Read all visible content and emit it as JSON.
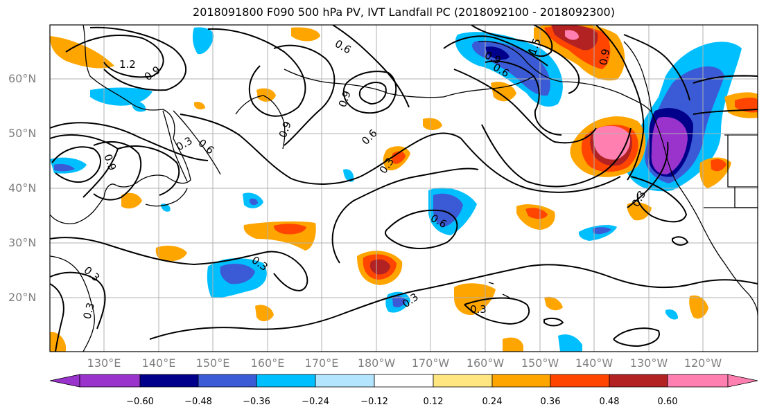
{
  "title": "2018091800 F090 500 hPa PV, IVT Landfall PC (2018092100 - 2018092300)",
  "lat_labels": [
    "60°N",
    "50°N",
    "40°N",
    "30°N",
    "20°N"
  ],
  "lon_labels": [
    "130°E",
    "140°E",
    "150°E",
    "160°E",
    "170°E",
    "180°W",
    "170°W",
    "160°W",
    "150°W",
    "140°W",
    "130°W",
    "120°W"
  ],
  "colorbar": {
    "labels": [
      "−0.60",
      "−0.48",
      "−0.36",
      "−0.24",
      "−0.12",
      "0.12",
      "0.24",
      "0.36",
      "0.48",
      "0.60"
    ],
    "colors": [
      "#9933cc",
      "#00008b",
      "#3b5bd6",
      "#00bfff",
      "#b3e5ff",
      "#ffffff",
      "#ffe680",
      "#ffa500",
      "#ff4500",
      "#b22222",
      "#ff80b0"
    ]
  },
  "contour_labels": [
    "1.2",
    "0.9",
    "0.6",
    "0.9",
    "0.9",
    "0.9",
    "0.6",
    "0.3",
    "0.6",
    "0.3",
    "0.3",
    "0.3",
    "0.3",
    "0.3",
    "0.6",
    "0.9",
    "1.5",
    "0.9",
    "0.6",
    "0.3",
    "0.3"
  ],
  "map_colors": {
    "pink": "#ff80b0",
    "darkred": "#b22222",
    "red": "#ff4500",
    "orange": "#ffa500",
    "yellow": "#ffe680",
    "lightblue": "#b3e5ff",
    "cyan": "#00bfff",
    "blue": "#3b5bd6",
    "navy": "#00008b",
    "purple": "#9933cc"
  }
}
